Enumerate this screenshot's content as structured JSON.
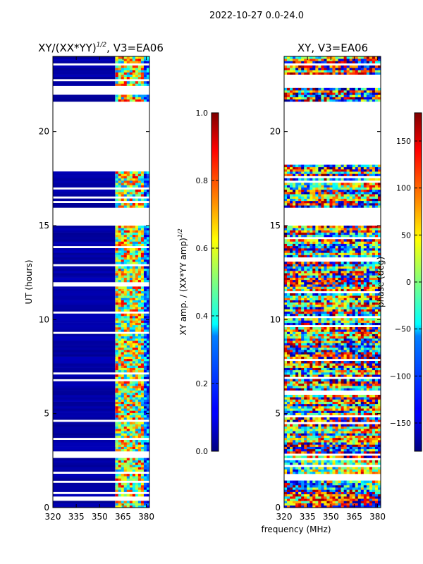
{
  "figure": {
    "suptitle": "2022-10-27 0.0-24.0",
    "shared_xlabel": "frequency (MHz)"
  },
  "chart_data": [
    {
      "type": "heatmap",
      "title_main": "XY/(XX*YY)",
      "title_exp": "1/2",
      "title_tail": ", V3=EA06",
      "xlabel": "frequency (MHz)",
      "ylabel": "UT (hours)",
      "xlim": [
        320,
        382
      ],
      "ylim": [
        0,
        24
      ],
      "xticks": [
        320,
        335,
        350,
        365,
        380
      ],
      "yticks": [
        0,
        5,
        10,
        15,
        20
      ],
      "colormap": "jet",
      "colorbar": {
        "label_main": "XY amp. / (XX*YY amp)",
        "label_exp": "1/2",
        "range": [
          0.0,
          1.0
        ],
        "ticks": [
          "0.0",
          "0.2",
          "0.4",
          "0.6",
          "0.8",
          "1.0"
        ],
        "tick_values": [
          0.0,
          0.2,
          0.4,
          0.6,
          0.8,
          1.0
        ]
      },
      "data_gaps_hours": [
        [
          17.9,
          21.6
        ],
        [
          15.0,
          16.0
        ],
        [
          22.0,
          22.4
        ]
      ],
      "band_pattern": "low amplitude (~0) below 360 MHz; higher, variable amplitude (~0.3-0.9) from 360 to 380 MHz"
    },
    {
      "type": "heatmap",
      "title_main": "XY, V3=EA06",
      "xlabel": "frequency (MHz)",
      "ylabel": "",
      "xlim": [
        320,
        382
      ],
      "ylim": [
        0,
        24
      ],
      "xticks": [
        320,
        335,
        350,
        365,
        380
      ],
      "yticks": [
        0,
        5,
        10,
        15,
        20
      ],
      "colormap": "jet",
      "colorbar": {
        "label_main": "phase (deg)",
        "range": [
          -180,
          180
        ],
        "ticks": [
          "−150",
          "−100",
          "−50",
          "0",
          "50",
          "100",
          "150"
        ],
        "tick_values": [
          -150,
          -100,
          -50,
          0,
          50,
          100,
          150
        ]
      },
      "data_gaps_hours": [
        [
          18.2,
          21.6
        ],
        [
          15.0,
          16.0
        ],
        [
          22.3,
          23.0
        ]
      ],
      "band_pattern": "phase varies widely (-180 to 180 deg) across all frequencies"
    }
  ]
}
